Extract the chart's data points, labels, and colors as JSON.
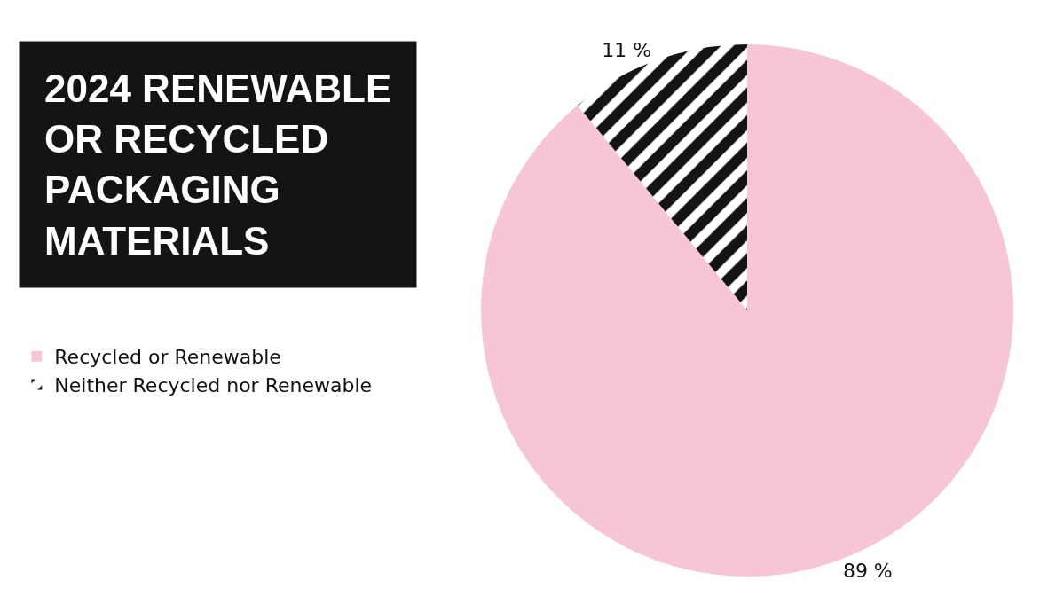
{
  "chart_data": {
    "type": "pie",
    "title": "2024 RENEWABLE OR RECYCLED PACKAGING MATERIALS",
    "categories": [
      "Recycled or Renewable",
      "Neither Recycled nor Renewable"
    ],
    "values": [
      89,
      11
    ],
    "value_labels": [
      "89 %",
      "11 %"
    ],
    "colors": [
      "#f6c6d7",
      "#141414"
    ],
    "legend": "left"
  }
}
